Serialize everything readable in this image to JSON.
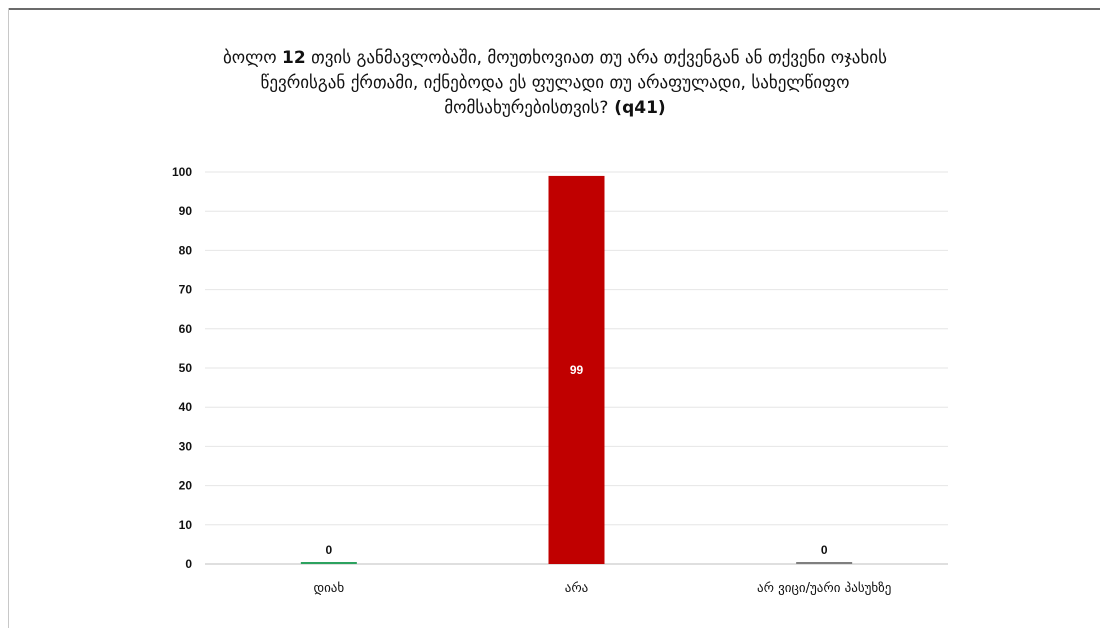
{
  "chart_data": {
    "type": "bar",
    "title_parts": [
      "ბოლო ",
      "12",
      " თვის განმავლობაში, მოუთხოვიათ თუ არა თქვენგან ან თქვენი ოჯახის წევრისგან ქრთამი, იქნებოდა ეს ფულადი თუ არაფულადი, სახელწიფო მომსახურებისთვის?",
      " (q41)"
    ],
    "categories": [
      "დიახ",
      "არა",
      "არ ვიცი/უარი პასუხზე"
    ],
    "values": [
      0,
      99,
      0
    ],
    "data_labels": [
      "0",
      "99",
      "0"
    ],
    "ylim": [
      0,
      100
    ],
    "yticks": [
      0,
      10,
      20,
      30,
      40,
      50,
      60,
      70,
      80,
      90,
      100
    ],
    "grid": true,
    "legend": "none",
    "colors": [
      "#2ca25f",
      "#c00000",
      "#7f7f7f"
    ],
    "data_label_colors": [
      "#111111",
      "#ffffff",
      "#111111"
    ]
  }
}
